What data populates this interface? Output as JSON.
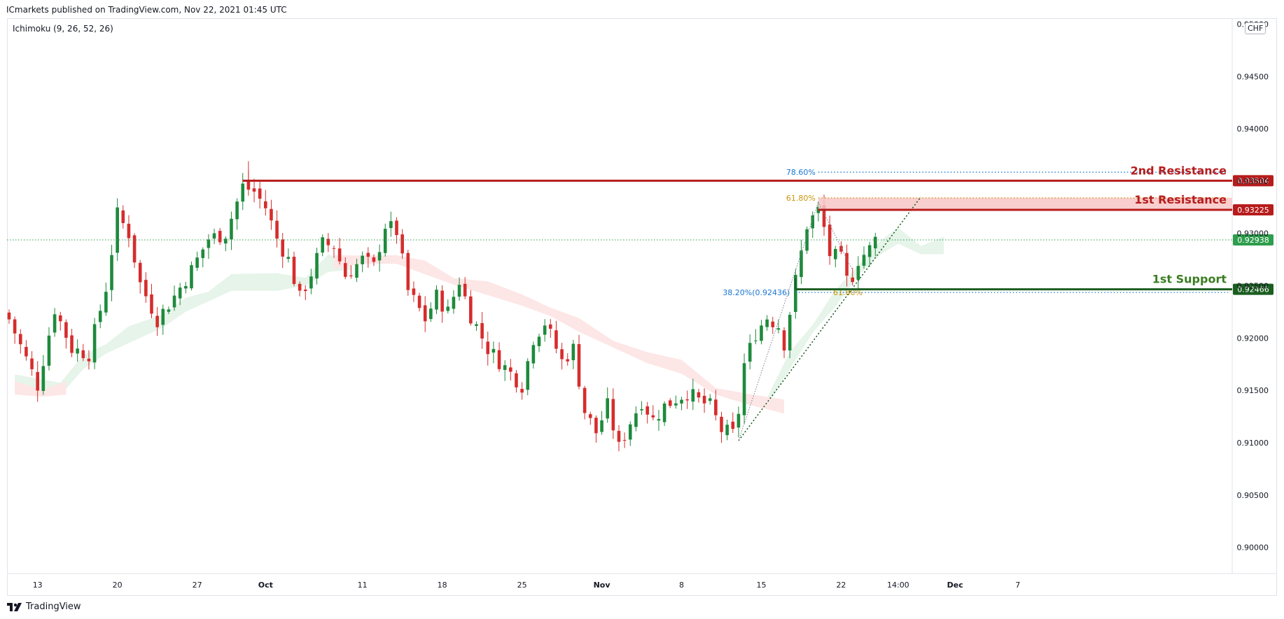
{
  "header": {
    "publisher_line": "ICmarkets published on TradingView.com, Nov 22, 2021 01:45 UTC",
    "indicator": "Ichimoku (9, 26, 52, 26)",
    "currency": "CHF"
  },
  "footer": {
    "brand": "TradingView",
    "logo_icon": "tradingview-logo-icon"
  },
  "colors": {
    "bull": "#1e8a3c",
    "bear": "#d62c2c",
    "resistance": "#b71c1c",
    "support": "#1b5e20",
    "cloud_bull": "#e6f4ea",
    "cloud_bear": "#fde6e6",
    "fib_blue": "#1976d2",
    "fib_orange": "#c9950a",
    "last_price": "#2e9d4c"
  },
  "chart_data": {
    "type": "candlestick",
    "ylim": [
      0.8975,
      0.9505
    ],
    "y_ticks": [
      "0.90000",
      "0.90500",
      "0.91000",
      "0.91500",
      "0.92000",
      "0.92500",
      "0.93000",
      "0.93500",
      "0.94000",
      "0.94500",
      "0.95000"
    ],
    "x_ticks": [
      {
        "label": "13",
        "i": 5
      },
      {
        "label": "20",
        "i": 19
      },
      {
        "label": "27",
        "i": 33
      },
      {
        "label": "Oct",
        "i": 45
      },
      {
        "label": "11",
        "i": 62
      },
      {
        "label": "18",
        "i": 76
      },
      {
        "label": "25",
        "i": 90
      },
      {
        "label": "Nov",
        "i": 104
      },
      {
        "label": "8",
        "i": 118
      },
      {
        "label": "15",
        "i": 132
      },
      {
        "label": "22",
        "i": 146
      },
      {
        "label": "14:00",
        "i": 156
      },
      {
        "label": "Dec",
        "i": 166
      },
      {
        "label": "7",
        "i": 177
      }
    ],
    "keys": [
      [
        0,
        0.9218
      ],
      [
        3,
        0.918
      ],
      [
        5,
        0.9155
      ],
      [
        8,
        0.9228
      ],
      [
        11,
        0.919
      ],
      [
        14,
        0.9185
      ],
      [
        17,
        0.9248
      ],
      [
        19,
        0.9318
      ],
      [
        21,
        0.93
      ],
      [
        23,
        0.9252
      ],
      [
        26,
        0.9218
      ],
      [
        29,
        0.924
      ],
      [
        32,
        0.9265
      ],
      [
        35,
        0.9295
      ],
      [
        38,
        0.93
      ],
      [
        41,
        0.9345
      ],
      [
        43,
        0.934
      ],
      [
        45,
        0.9325
      ],
      [
        47,
        0.9295
      ],
      [
        49,
        0.9275
      ],
      [
        51,
        0.9238
      ],
      [
        53,
        0.9262
      ],
      [
        55,
        0.929
      ],
      [
        57,
        0.9288
      ],
      [
        59,
        0.926
      ],
      [
        62,
        0.9275
      ],
      [
        64,
        0.9268
      ],
      [
        66,
        0.9308
      ],
      [
        68,
        0.9302
      ],
      [
        70,
        0.9245
      ],
      [
        73,
        0.9218
      ],
      [
        75,
        0.924
      ],
      [
        77,
        0.9225
      ],
      [
        79,
        0.9255
      ],
      [
        81,
        0.9222
      ],
      [
        84,
        0.919
      ],
      [
        87,
        0.9172
      ],
      [
        90,
        0.9155
      ],
      [
        92,
        0.92
      ],
      [
        94,
        0.9215
      ],
      [
        97,
        0.9178
      ],
      [
        99,
        0.919
      ],
      [
        101,
        0.913
      ],
      [
        103,
        0.911
      ],
      [
        105,
        0.9135
      ],
      [
        107,
        0.9095
      ],
      [
        109,
        0.912
      ],
      [
        111,
        0.914
      ],
      [
        113,
        0.9122
      ],
      [
        115,
        0.9135
      ],
      [
        117,
        0.9142
      ],
      [
        119,
        0.9148
      ],
      [
        121,
        0.914
      ],
      [
        123,
        0.9135
      ],
      [
        125,
        0.9112
      ],
      [
        127,
        0.9108
      ],
      [
        128,
        0.913
      ],
      [
        129,
        0.9175
      ],
      [
        131,
        0.9205
      ],
      [
        133,
        0.922
      ],
      [
        135,
        0.9212
      ],
      [
        136,
        0.9195
      ],
      [
        138,
        0.9255
      ],
      [
        140,
        0.9308
      ],
      [
        142,
        0.9322
      ],
      [
        143,
        0.9305
      ],
      [
        144,
        0.928
      ],
      [
        146,
        0.9275
      ],
      [
        147,
        0.9255
      ],
      [
        148,
        0.926
      ],
      [
        149,
        0.9275
      ],
      [
        151,
        0.9285
      ],
      [
        152,
        0.9294
      ]
    ],
    "last_index": 152,
    "bull_cloud": [
      [
        1,
        0.9155
      ],
      [
        9,
        0.915
      ],
      [
        13,
        0.9175
      ],
      [
        17,
        0.919
      ],
      [
        21,
        0.92
      ],
      [
        27,
        0.9215
      ],
      [
        31,
        0.923
      ],
      [
        35,
        0.924
      ],
      [
        39,
        0.925
      ],
      [
        47,
        0.925
      ],
      [
        52,
        0.9255
      ],
      [
        56,
        0.9268
      ],
      [
        60,
        0.927
      ],
      [
        133,
        0.914
      ],
      [
        137,
        0.9175
      ],
      [
        141,
        0.921
      ],
      [
        145,
        0.9235
      ],
      [
        149,
        0.9265
      ],
      [
        153,
        0.9285
      ],
      [
        156,
        0.9295
      ],
      [
        160,
        0.9285
      ],
      [
        164,
        0.9285
      ]
    ],
    "bear_cloud": [
      [
        1,
        0.915
      ],
      [
        6,
        0.9148
      ],
      [
        10,
        0.915
      ],
      [
        57,
        0.927
      ],
      [
        62,
        0.9275
      ],
      [
        68,
        0.9275
      ],
      [
        73,
        0.9265
      ],
      [
        78,
        0.9255
      ],
      [
        84,
        0.9245
      ],
      [
        90,
        0.9235
      ],
      [
        95,
        0.9225
      ],
      [
        100,
        0.921
      ],
      [
        106,
        0.9195
      ],
      [
        112,
        0.918
      ],
      [
        118,
        0.917
      ],
      [
        124,
        0.915
      ],
      [
        130,
        0.914
      ],
      [
        136,
        0.9132
      ]
    ],
    "levels": [
      {
        "label": "2nd Resistance",
        "value": 0.93504,
        "price": "0.93504",
        "color": "resistance",
        "from_i": 41
      },
      {
        "label": "1st Resistance",
        "value": 0.93225,
        "price": "0.93225",
        "color": "resistance",
        "from_i": 142
      },
      {
        "label": "1st Support",
        "value": 0.92466,
        "price": "0.92466",
        "color": "support",
        "from_i": 138
      }
    ],
    "resistance_zone": [
      0.93225,
      0.9334
    ],
    "last_price": {
      "value": 0.92938,
      "price": "0.92938"
    },
    "fib": [
      {
        "label": "78.60%",
        "value": 0.93585,
        "color": "fib_blue",
        "from_i": 142
      },
      {
        "label": "61.80%",
        "value": 0.9334,
        "color": "fib_orange",
        "from_i": 142
      },
      {
        "label": "38.20%(0.92436)",
        "value": 0.92436,
        "color": "fib_blue",
        "from_i": 138
      },
      {
        "label": "61.80%",
        "value": 0.92436,
        "color": "fib_orange",
        "from_i": 150
      }
    ],
    "trendlines": [
      {
        "from": [
          128,
          0.9102
        ],
        "to": [
          160,
          0.9335
        ]
      },
      {
        "from": [
          128,
          0.9102
        ],
        "to": [
          142,
          0.933
        ]
      },
      {
        "from": [
          142,
          0.933
        ],
        "to": [
          148,
          0.9265
        ]
      }
    ]
  }
}
